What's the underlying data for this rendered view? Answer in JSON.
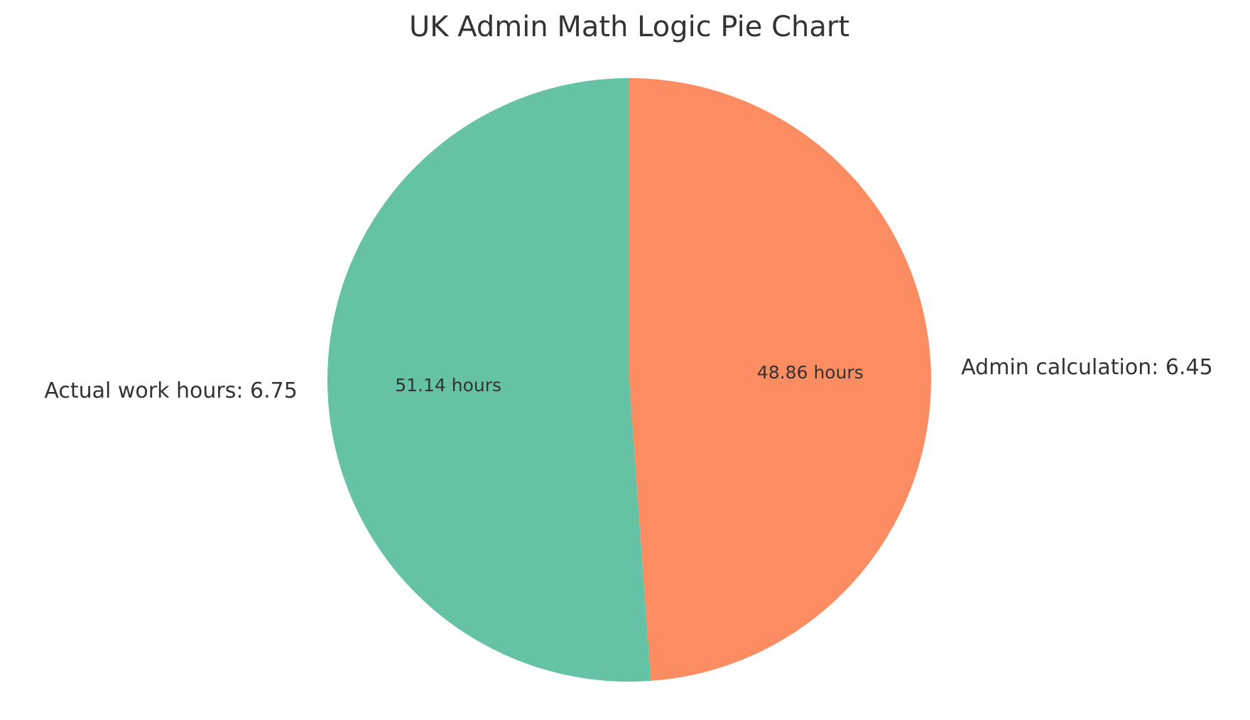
{
  "chart_data": {
    "type": "pie",
    "title": "UK Admin Math Logic Pie Chart",
    "categories": [
      "Actual work hours: 6.75",
      "Admin calculation: 6.45"
    ],
    "values": [
      51.14,
      48.86
    ],
    "value_labels": [
      "51.14 hours",
      "48.86 hours"
    ],
    "colors": [
      "#66c2a5",
      "#fc8d62"
    ]
  }
}
